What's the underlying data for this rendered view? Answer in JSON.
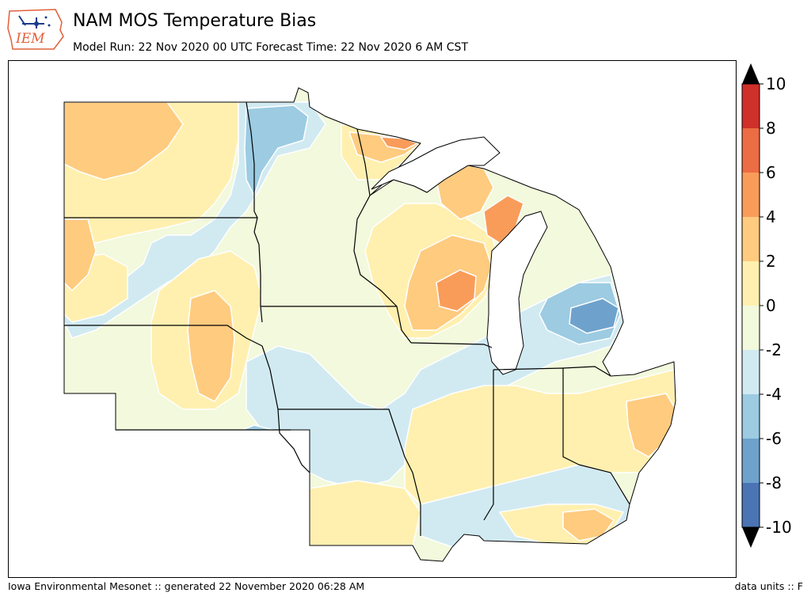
{
  "header": {
    "logo_text": "IEM",
    "title": "NAM MOS Temperature Bias",
    "subtitle": "Model Run: 22 Nov 2020 00 UTC Forecast Time: 22 Nov 2020 6 AM CST"
  },
  "map": {
    "region": "Upper Midwest",
    "palette": {
      "lt_-8": "#4a74b4",
      "-8_-6": "#6ea2cc",
      "-6_-4": "#9ccbe2",
      "-4_-2": "#d1eaf2",
      "-2_0": "#f2f9dc",
      "0_2": "#fff0b0",
      "2_4": "#fecb7f",
      "4_6": "#f99c5a",
      "6_8": "#ec6c44",
      "gt_8": "#d0302a"
    },
    "state_border_color": "#000000",
    "lake_color": "#ffffff",
    "contour_line_color": "#ffffff"
  },
  "colorbar": {
    "ticks": [
      "10",
      "8",
      "6",
      "4",
      "2",
      "0",
      "-2",
      "-4",
      "-6",
      "-8",
      "-10"
    ],
    "colors": [
      "#d0302a",
      "#ec6c44",
      "#f99c5a",
      "#fecb7f",
      "#fff0b0",
      "#f2f9dc",
      "#d1eaf2",
      "#9ccbe2",
      "#6ea2cc",
      "#4a74b4"
    ],
    "over_color": "#000000",
    "under_color": "#000000"
  },
  "footer": {
    "left": "Iowa Environmental Mesonet :: generated 22 November 2020 06:28 AM",
    "right": "data units :: F"
  }
}
